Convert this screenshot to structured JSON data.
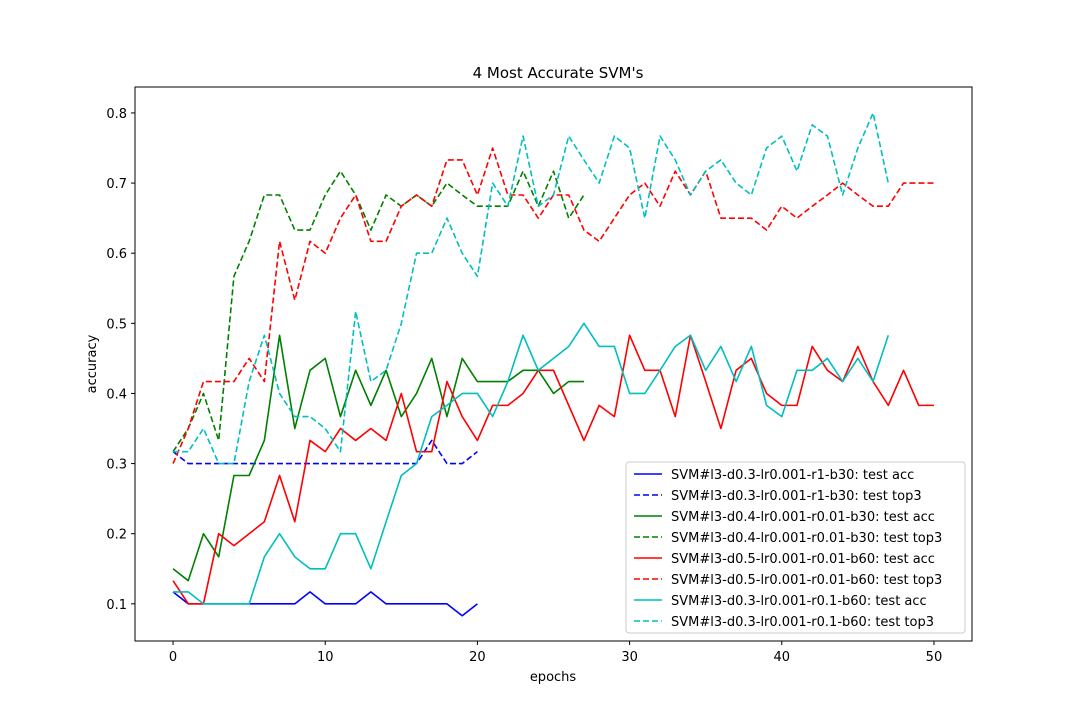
{
  "chart_data": {
    "type": "line",
    "title": "4 Most Accurate SVM's",
    "xlabel": "epochs",
    "ylabel": "accuracy",
    "xlim": [
      -2.5,
      52.5
    ],
    "ylim": [
      0.047,
      0.837
    ],
    "xticks": [
      0,
      10,
      20,
      30,
      40,
      50
    ],
    "yticks": [
      0.1,
      0.2,
      0.3,
      0.4,
      0.5,
      0.6,
      0.7,
      0.8
    ],
    "ytick_labels": [
      "0.1",
      "0.2",
      "0.3",
      "0.4",
      "0.5",
      "0.6",
      "0.7",
      "0.8"
    ],
    "legend_position": "lower-right",
    "series": [
      {
        "name": "SVM#l3-d0.3-lr0.001-r1-b30: test acc",
        "color": "#0000ff",
        "dash": "solid",
        "values": [
          0.117,
          0.1,
          0.1,
          0.1,
          0.1,
          0.1,
          0.1,
          0.1,
          0.1,
          0.117,
          0.1,
          0.1,
          0.1,
          0.117,
          0.1,
          0.1,
          0.1,
          0.1,
          0.1,
          0.083,
          0.1
        ]
      },
      {
        "name": "SVM#l3-d0.3-lr0.001-r1-b30: test top3",
        "color": "#0000ff",
        "dash": "dashed",
        "values": [
          0.317,
          0.3,
          0.3,
          0.3,
          0.3,
          0.3,
          0.3,
          0.3,
          0.3,
          0.3,
          0.3,
          0.3,
          0.3,
          0.3,
          0.3,
          0.3,
          0.3,
          0.333,
          0.3,
          0.3,
          0.317
        ]
      },
      {
        "name": "SVM#l3-d0.4-lr0.001-r0.01-b30: test acc",
        "color": "#008000",
        "dash": "solid",
        "values": [
          0.15,
          0.133,
          0.2,
          0.167,
          0.283,
          0.283,
          0.333,
          0.483,
          0.35,
          0.433,
          0.45,
          0.367,
          0.433,
          0.383,
          0.433,
          0.367,
          0.4,
          0.45,
          0.367,
          0.45,
          0.417,
          0.417,
          0.417,
          0.433,
          0.433,
          0.4,
          0.417,
          0.417
        ]
      },
      {
        "name": "SVM#l3-d0.4-lr0.001-r0.01-b30: test top3",
        "color": "#008000",
        "dash": "dashed",
        "values": [
          0.317,
          0.35,
          0.4,
          0.333,
          0.567,
          0.617,
          0.683,
          0.683,
          0.633,
          0.633,
          0.683,
          0.717,
          0.683,
          0.633,
          0.683,
          0.667,
          0.683,
          0.667,
          0.7,
          0.683,
          0.667,
          0.667,
          0.667,
          0.717,
          0.667,
          0.717,
          0.65,
          0.683
        ]
      },
      {
        "name": "SVM#l3-d0.5-lr0.001-r0.01-b60: test acc",
        "color": "#ff0000",
        "dash": "solid",
        "values": [
          0.133,
          0.1,
          0.1,
          0.2,
          0.183,
          0.2,
          0.217,
          0.283,
          0.217,
          0.333,
          0.317,
          0.35,
          0.333,
          0.35,
          0.333,
          0.4,
          0.317,
          0.317,
          0.417,
          0.367,
          0.333,
          0.383,
          0.383,
          0.4,
          0.433,
          0.433,
          0.383,
          0.333,
          0.383,
          0.367,
          0.483,
          0.433,
          0.433,
          0.367,
          0.483,
          0.417,
          0.35,
          0.433,
          0.45,
          0.4,
          0.383,
          0.383,
          0.467,
          0.433,
          0.417,
          0.467,
          0.417,
          0.383,
          0.433,
          0.383,
          0.383
        ]
      },
      {
        "name": "SVM#l3-d0.5-lr0.001-r0.01-b60: test top3",
        "color": "#ff0000",
        "dash": "dashed",
        "values": [
          0.3,
          0.35,
          0.417,
          0.417,
          0.417,
          0.45,
          0.417,
          0.617,
          0.533,
          0.617,
          0.6,
          0.65,
          0.683,
          0.617,
          0.617,
          0.667,
          0.683,
          0.667,
          0.733,
          0.733,
          0.683,
          0.75,
          0.683,
          0.683,
          0.65,
          0.683,
          0.683,
          0.633,
          0.617,
          0.65,
          0.683,
          0.7,
          0.667,
          0.717,
          0.683,
          0.717,
          0.65,
          0.65,
          0.65,
          0.633,
          0.667,
          0.65,
          0.667,
          0.683,
          0.7,
          0.683,
          0.667,
          0.667,
          0.7,
          0.7,
          0.7
        ]
      },
      {
        "name": "SVM#l3-d0.3-lr0.001-r0.1-b60: test acc",
        "color": "#00bfbf",
        "dash": "solid",
        "values": [
          0.117,
          0.117,
          0.1,
          0.1,
          0.1,
          0.1,
          0.167,
          0.2,
          0.167,
          0.15,
          0.15,
          0.2,
          0.2,
          0.15,
          0.217,
          0.283,
          0.3,
          0.367,
          0.383,
          0.4,
          0.4,
          0.367,
          0.417,
          0.483,
          0.433,
          0.45,
          0.467,
          0.5,
          0.467,
          0.467,
          0.4,
          0.4,
          0.433,
          0.467,
          0.483,
          0.433,
          0.467,
          0.417,
          0.467,
          0.383,
          0.367,
          0.433,
          0.433,
          0.45,
          0.417,
          0.45,
          0.417,
          0.483
        ]
      },
      {
        "name": "SVM#l3-d0.3-lr0.001-r0.1-b60: test top3",
        "color": "#00bfbf",
        "dash": "dashed",
        "values": [
          0.317,
          0.317,
          0.35,
          0.3,
          0.3,
          0.417,
          0.483,
          0.4,
          0.367,
          0.367,
          0.35,
          0.317,
          0.517,
          0.417,
          0.433,
          0.5,
          0.6,
          0.6,
          0.65,
          0.6,
          0.567,
          0.7,
          0.667,
          0.767,
          0.667,
          0.683,
          0.767,
          0.733,
          0.7,
          0.767,
          0.75,
          0.65,
          0.767,
          0.733,
          0.683,
          0.717,
          0.733,
          0.7,
          0.683,
          0.75,
          0.767,
          0.717,
          0.783,
          0.767,
          0.683,
          0.75,
          0.8,
          0.7
        ]
      }
    ]
  }
}
